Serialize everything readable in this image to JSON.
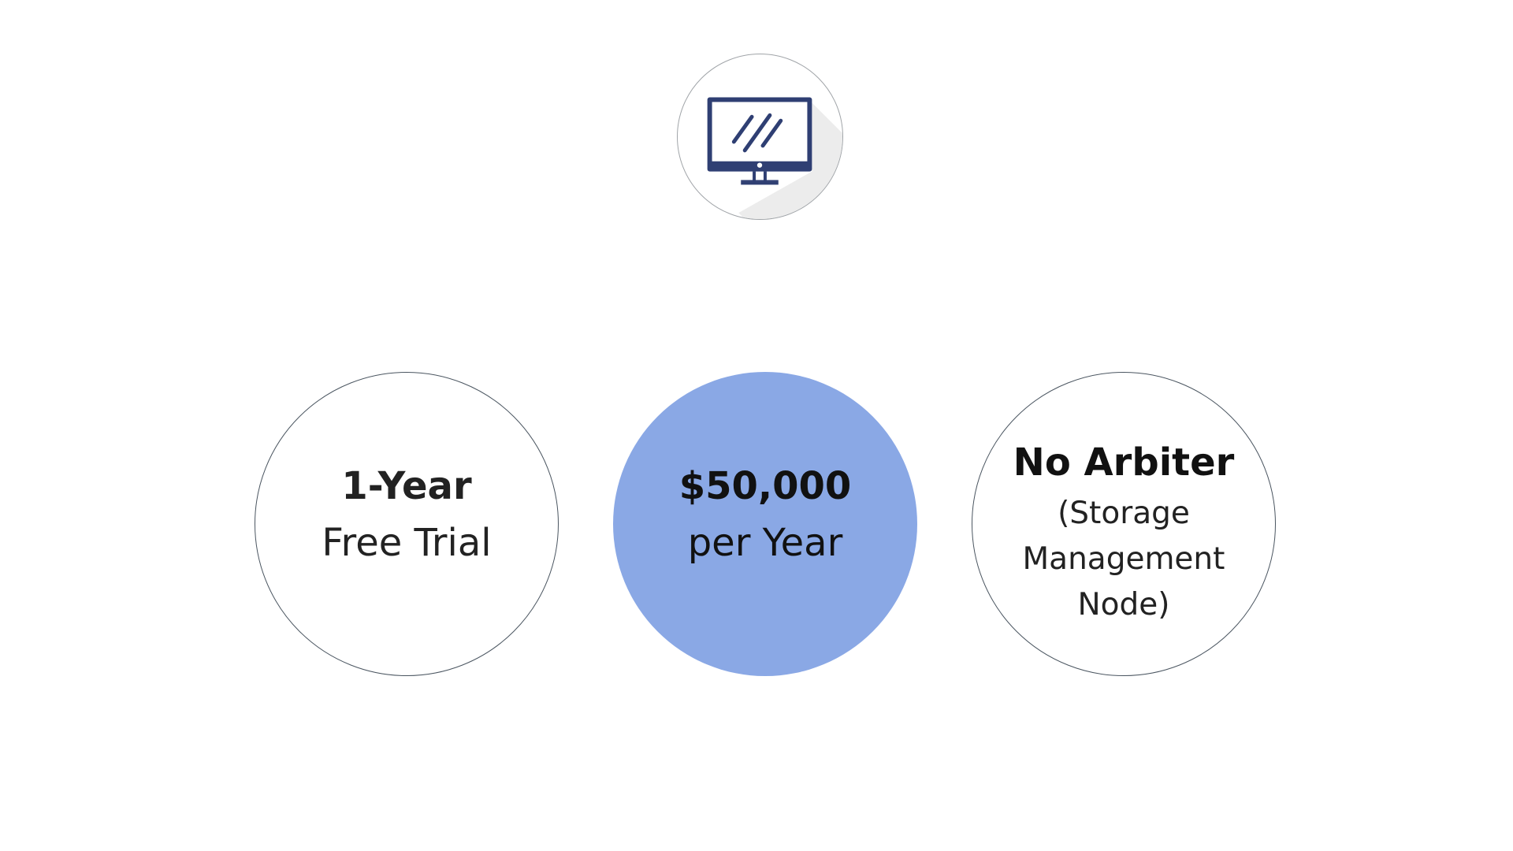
{
  "icon": {
    "name": "monitor-icon",
    "color": "#2f3f73",
    "shadow_color": "#ececec"
  },
  "circles": [
    {
      "bold": "1-Year",
      "line": "Free Trial"
    },
    {
      "bold": "$50,000",
      "line": "per Year",
      "fill_color": "#8aa8e5"
    },
    {
      "bold": "No Arbiter",
      "lines": [
        "(Storage",
        "Management",
        "Node)"
      ]
    }
  ]
}
